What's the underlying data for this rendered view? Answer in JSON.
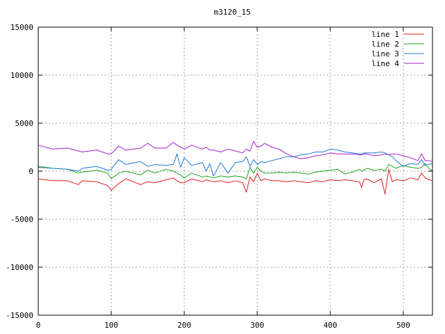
{
  "chart_data": {
    "type": "line",
    "title": "m3120_15",
    "xlabel": "",
    "ylabel": "",
    "xlim": [
      0,
      540
    ],
    "ylim": [
      -15000,
      15000
    ],
    "x_ticks": [
      0,
      100,
      200,
      300,
      400,
      500
    ],
    "y_ticks": [
      -15000,
      -10000,
      -5000,
      0,
      5000,
      10000,
      15000
    ],
    "grid": true,
    "legend_position": "top-right",
    "x": [
      0,
      20,
      40,
      55,
      60,
      80,
      95,
      100,
      110,
      120,
      140,
      150,
      160,
      175,
      185,
      190,
      195,
      200,
      210,
      225,
      230,
      235,
      240,
      250,
      260,
      270,
      280,
      285,
      290,
      295,
      300,
      305,
      310,
      320,
      330,
      340,
      350,
      360,
      370,
      380,
      390,
      400,
      410,
      420,
      430,
      440,
      443,
      446,
      450,
      460,
      470,
      475,
      480,
      485,
      490,
      500,
      510,
      520,
      525,
      530,
      535,
      540
    ],
    "series": [
      {
        "name": "line 1",
        "color": "#e41a1c",
        "values": [
          -800,
          -1000,
          -1000,
          -1400,
          -1000,
          -1100,
          -1500,
          -2000,
          -1300,
          -800,
          -1400,
          -1100,
          -1200,
          -900,
          -700,
          -1000,
          -1200,
          -1200,
          -800,
          -1100,
          -900,
          -1000,
          -1100,
          -1000,
          -1200,
          -1000,
          -1200,
          -2200,
          -600,
          -1100,
          -200,
          -1000,
          -800,
          -1000,
          -1000,
          -1100,
          -1000,
          -1100,
          -1200,
          -1000,
          -1100,
          -900,
          -1000,
          -900,
          -1000,
          -1100,
          -1700,
          -900,
          -800,
          -1200,
          -800,
          -2400,
          200,
          -1100,
          -900,
          -1000,
          -700,
          -900,
          -200,
          -700,
          -900,
          -1000
        ]
      },
      {
        "name": "line 2",
        "color": "#1fa51f",
        "values": [
          500,
          300,
          200,
          -200,
          -100,
          100,
          -200,
          -800,
          -200,
          0,
          -400,
          100,
          -200,
          200,
          0,
          -200,
          -400,
          -700,
          -200,
          -600,
          -500,
          -600,
          -700,
          -500,
          -600,
          -500,
          -600,
          -800,
          400,
          -200,
          400,
          0,
          -200,
          -200,
          -100,
          -200,
          -100,
          -200,
          -300,
          -100,
          0,
          100,
          200,
          -300,
          -100,
          200,
          0,
          100,
          300,
          100,
          200,
          0,
          700,
          500,
          300,
          600,
          400,
          300,
          400,
          800,
          300,
          0
        ]
      },
      {
        "name": "line 3",
        "color": "#1f78d6",
        "values": [
          400,
          300,
          200,
          0,
          300,
          500,
          100,
          200,
          1200,
          700,
          1000,
          500,
          700,
          600,
          700,
          1800,
          400,
          1400,
          600,
          900,
          0,
          800,
          -500,
          900,
          -200,
          900,
          1000,
          1500,
          500,
          1200,
          700,
          1000,
          900,
          1100,
          1300,
          1500,
          1500,
          1700,
          1800,
          2000,
          2000,
          2300,
          2200,
          2000,
          1900,
          1800,
          1800,
          1900,
          1900,
          1900,
          2000,
          1900,
          1700,
          1500,
          1100,
          500,
          800,
          700,
          1200,
          600,
          700,
          800
        ]
      },
      {
        "name": "line 4",
        "color": "#a21fd1",
        "values": [
          2700,
          2300,
          2400,
          2100,
          2000,
          2200,
          1800,
          1800,
          2600,
          2200,
          2400,
          2900,
          2400,
          2400,
          3000,
          2700,
          2500,
          2300,
          2700,
          2300,
          2500,
          2200,
          2200,
          2000,
          2300,
          2100,
          1900,
          2300,
          2100,
          3100,
          2500,
          2600,
          2900,
          2500,
          2300,
          1800,
          1500,
          1300,
          1400,
          1600,
          1700,
          1900,
          1800,
          1800,
          1800,
          1700,
          1700,
          1800,
          1800,
          1600,
          1700,
          1800,
          1700,
          1800,
          1800,
          1600,
          1400,
          1100,
          1800,
          1100,
          1100,
          1000
        ]
      }
    ]
  }
}
